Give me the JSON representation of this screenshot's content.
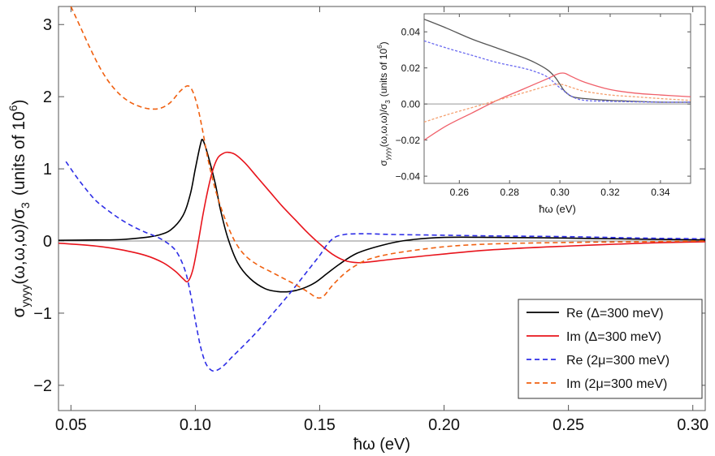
{
  "chart_data": [
    {
      "type": "line",
      "role": "main",
      "xlabel": "ħω (eV)",
      "ylabel_main": "σ",
      "ylabel_sub": "yyyy",
      "ylabel_rest": "(ω,ω,ω)/σ",
      "ylabel_sub2": "3",
      "ylabel_units": "(units of 10",
      "ylabel_exp": "6",
      "ylabel_close": ")",
      "xlim": [
        0.045,
        0.305
      ],
      "ylim": [
        -2.35,
        3.25
      ],
      "xticks": [
        0.05,
        0.1,
        0.15,
        0.2,
        0.25,
        0.3
      ],
      "xtick_labels": [
        "0.05",
        "0.10",
        "0.15",
        "0.20",
        "0.25",
        "0.30"
      ],
      "yticks": [
        -2,
        -1,
        0,
        1,
        2,
        3
      ],
      "ytick_labels": [
        "−2",
        "−1",
        "0",
        "1",
        "2",
        "3"
      ],
      "zero_line": true,
      "legend_position": "bottom-right",
      "series": [
        {
          "name": "Re (Δ=300 meV)",
          "color": "#000000",
          "dash": "solid",
          "x": [
            0.045,
            0.06,
            0.07,
            0.08,
            0.085,
            0.09,
            0.095,
            0.098,
            0.1,
            0.102,
            0.103,
            0.105,
            0.108,
            0.11,
            0.113,
            0.117,
            0.122,
            0.128,
            0.133,
            0.138,
            0.143,
            0.148,
            0.153,
            0.158,
            0.165,
            0.175,
            0.185,
            0.2,
            0.22,
            0.25,
            0.28,
            0.305
          ],
          "y": [
            0.01,
            0.015,
            0.02,
            0.05,
            0.08,
            0.15,
            0.35,
            0.65,
            1.0,
            1.33,
            1.4,
            1.2,
            0.8,
            0.45,
            0.05,
            -0.3,
            -0.52,
            -0.66,
            -0.7,
            -0.7,
            -0.66,
            -0.58,
            -0.45,
            -0.32,
            -0.17,
            -0.06,
            0.01,
            0.05,
            0.05,
            0.04,
            0.025,
            0.015
          ]
        },
        {
          "name": "Im (Δ=300 meV)",
          "color": "#e8141c",
          "dash": "solid",
          "x": [
            0.045,
            0.06,
            0.07,
            0.08,
            0.087,
            0.092,
            0.095,
            0.097,
            0.099,
            0.101,
            0.103,
            0.105,
            0.107,
            0.109,
            0.111,
            0.113,
            0.116,
            0.12,
            0.125,
            0.13,
            0.135,
            0.14,
            0.145,
            0.15,
            0.155,
            0.16,
            0.165,
            0.17,
            0.18,
            0.2,
            0.22,
            0.25,
            0.28,
            0.305
          ],
          "y": [
            -0.03,
            -0.07,
            -0.12,
            -0.2,
            -0.3,
            -0.42,
            -0.52,
            -0.56,
            -0.4,
            -0.05,
            0.35,
            0.7,
            0.98,
            1.15,
            1.21,
            1.23,
            1.2,
            1.08,
            0.88,
            0.68,
            0.48,
            0.3,
            0.12,
            -0.04,
            -0.18,
            -0.27,
            -0.3,
            -0.29,
            -0.25,
            -0.18,
            -0.12,
            -0.07,
            -0.03,
            -0.01
          ]
        },
        {
          "name": "Re (2μ=300 meV)",
          "color": "#2e2ee6",
          "dash": "dashed",
          "x": [
            0.048,
            0.052,
            0.056,
            0.06,
            0.065,
            0.07,
            0.075,
            0.08,
            0.085,
            0.09,
            0.093,
            0.096,
            0.098,
            0.1,
            0.102,
            0.104,
            0.106,
            0.108,
            0.111,
            0.115,
            0.12,
            0.125,
            0.13,
            0.135,
            0.14,
            0.145,
            0.15,
            0.153,
            0.156,
            0.16,
            0.165,
            0.17,
            0.18,
            0.2,
            0.22,
            0.25,
            0.28,
            0.305
          ],
          "y": [
            1.1,
            0.9,
            0.72,
            0.56,
            0.42,
            0.3,
            0.2,
            0.12,
            0.05,
            -0.06,
            -0.18,
            -0.42,
            -0.72,
            -1.1,
            -1.45,
            -1.68,
            -1.78,
            -1.8,
            -1.74,
            -1.6,
            -1.43,
            -1.25,
            -1.05,
            -0.85,
            -0.64,
            -0.42,
            -0.2,
            -0.05,
            0.05,
            0.09,
            0.1,
            0.1,
            0.09,
            0.08,
            0.07,
            0.06,
            0.04,
            0.03
          ]
        },
        {
          "name": "Im (2μ=300 meV)",
          "color": "#f06010",
          "dash": "dashed",
          "x": [
            0.05,
            0.054,
            0.058,
            0.062,
            0.066,
            0.07,
            0.074,
            0.078,
            0.082,
            0.086,
            0.09,
            0.094,
            0.097,
            0.099,
            0.101,
            0.103,
            0.105,
            0.108,
            0.112,
            0.116,
            0.12,
            0.125,
            0.13,
            0.135,
            0.14,
            0.145,
            0.148,
            0.15,
            0.152,
            0.155,
            0.16,
            0.165,
            0.17,
            0.18,
            0.2,
            0.22,
            0.25,
            0.28,
            0.305
          ],
          "y": [
            3.25,
            2.95,
            2.65,
            2.38,
            2.17,
            2.02,
            1.92,
            1.86,
            1.83,
            1.84,
            1.92,
            2.08,
            2.15,
            2.07,
            1.85,
            1.52,
            1.15,
            0.72,
            0.3,
            -0.01,
            -0.2,
            -0.33,
            -0.42,
            -0.51,
            -0.6,
            -0.7,
            -0.77,
            -0.79,
            -0.75,
            -0.62,
            -0.45,
            -0.33,
            -0.25,
            -0.17,
            -0.08,
            -0.04,
            -0.02,
            -0.01,
            0.0
          ]
        }
      ]
    },
    {
      "type": "line",
      "role": "inset",
      "xlabel": "ħω (eV)",
      "ylabel_main": "σ",
      "ylabel_sub": "yyyy",
      "ylabel_rest": "(ω,ω,ω)/σ",
      "ylabel_sub2": "3",
      "ylabel_units": "(units of 10",
      "ylabel_exp": "6",
      "ylabel_close": ")",
      "xlim": [
        0.246,
        0.352
      ],
      "ylim": [
        -0.044,
        0.05
      ],
      "xticks": [
        0.26,
        0.28,
        0.3,
        0.32,
        0.34
      ],
      "xtick_labels": [
        "0.26",
        "0.28",
        "0.30",
        "0.32",
        "0.34"
      ],
      "yticks": [
        -0.04,
        -0.02,
        0.0,
        0.02,
        0.04
      ],
      "ytick_labels": [
        "−0.04",
        "−0.02",
        "0.00",
        "0.02",
        "0.04"
      ],
      "zero_line": true,
      "series": [
        {
          "name": "Re (Δ=300 meV)",
          "color": "#555555",
          "dash": "solid",
          "x": [
            0.246,
            0.255,
            0.265,
            0.275,
            0.285,
            0.29,
            0.295,
            0.298,
            0.3,
            0.302,
            0.305,
            0.31,
            0.32,
            0.33,
            0.34,
            0.352
          ],
          "y": [
            0.047,
            0.042,
            0.036,
            0.031,
            0.026,
            0.023,
            0.019,
            0.015,
            0.011,
            0.007,
            0.004,
            0.003,
            0.002,
            0.0015,
            0.001,
            0.001
          ]
        },
        {
          "name": "Im (Δ=300 meV)",
          "color": "#f0606a",
          "dash": "solid",
          "x": [
            0.246,
            0.255,
            0.265,
            0.275,
            0.285,
            0.29,
            0.295,
            0.298,
            0.3,
            0.302,
            0.305,
            0.31,
            0.32,
            0.33,
            0.34,
            0.352
          ],
          "y": [
            -0.02,
            -0.012,
            -0.005,
            0.002,
            0.008,
            0.011,
            0.014,
            0.016,
            0.017,
            0.017,
            0.015,
            0.012,
            0.008,
            0.006,
            0.005,
            0.004
          ]
        },
        {
          "name": "Re (2μ=300 meV)",
          "color": "#6a6af0",
          "dash": "dashed",
          "x": [
            0.246,
            0.255,
            0.265,
            0.275,
            0.285,
            0.29,
            0.295,
            0.3,
            0.305,
            0.31,
            0.32,
            0.33,
            0.34,
            0.352
          ],
          "y": [
            0.035,
            0.031,
            0.027,
            0.023,
            0.02,
            0.018,
            0.015,
            0.009,
            0.004,
            0.002,
            0.0015,
            0.0012,
            0.001,
            0.001
          ]
        },
        {
          "name": "Im (2μ=300 meV)",
          "color": "#f5a070",
          "dash": "dashed",
          "x": [
            0.246,
            0.255,
            0.265,
            0.275,
            0.285,
            0.29,
            0.295,
            0.3,
            0.305,
            0.31,
            0.32,
            0.33,
            0.34,
            0.352
          ],
          "y": [
            -0.01,
            -0.006,
            -0.002,
            0.002,
            0.006,
            0.008,
            0.01,
            0.011,
            0.009,
            0.007,
            0.005,
            0.004,
            0.003,
            0.002
          ]
        }
      ]
    }
  ],
  "legend": {
    "entries": [
      {
        "label": "Re (Δ=300 meV)",
        "color": "#000000",
        "dash": "solid"
      },
      {
        "label": "Im (Δ=300 meV)",
        "color": "#e8141c",
        "dash": "solid"
      },
      {
        "label": "Re (2μ=300 meV)",
        "color": "#2e2ee6",
        "dash": "dashed"
      },
      {
        "label": "Im (2μ=300 meV)",
        "color": "#f06010",
        "dash": "dashed"
      }
    ]
  }
}
